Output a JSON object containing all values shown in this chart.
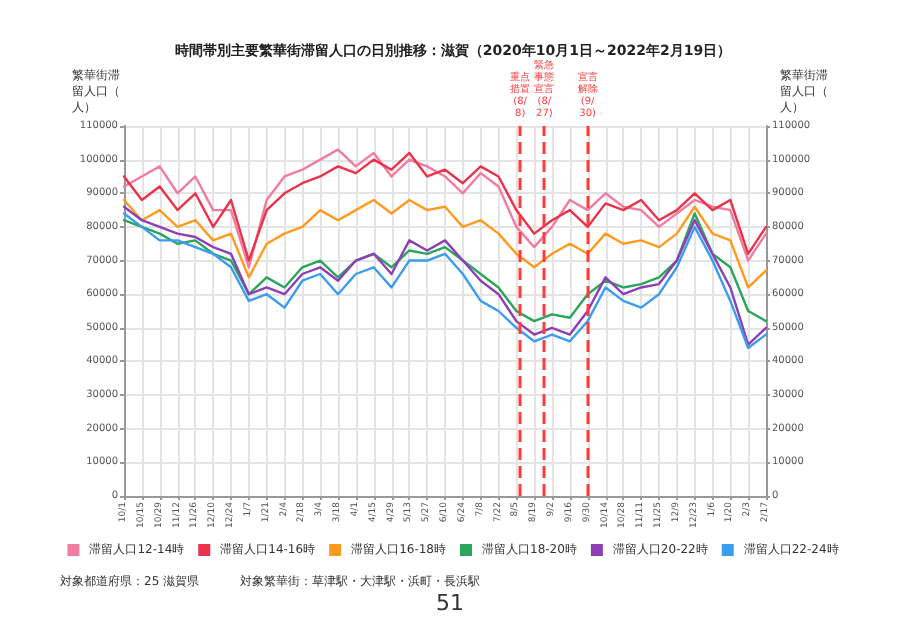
{
  "chart_data": {
    "type": "line",
    "title": "時間帯別主要繁華街滞留人口の日別推移：滋賀（2020年10月1日～2022年2月19日）",
    "ylabel": "繁華街滞留人口（人）",
    "y2label": "繁華街滞留人口（人）",
    "x": [
      "2020-10-01",
      "2020-10-15",
      "2020-10-29",
      "2020-11-12",
      "2020-11-26",
      "2020-12-10",
      "2020-12-24",
      "2021-01-07",
      "2021-01-21",
      "2021-02-04",
      "2021-02-18",
      "2021-03-04",
      "2021-03-18",
      "2021-04-01",
      "2021-04-15",
      "2021-04-29",
      "2021-05-13",
      "2021-05-27",
      "2021-06-10",
      "2021-06-24",
      "2021-07-08",
      "2021-07-22",
      "2021-08-05",
      "2021-08-19",
      "2021-09-02",
      "2021-09-16",
      "2021-09-30",
      "2021-10-14",
      "2021-10-28",
      "2021-11-11",
      "2021-11-25",
      "2021-12-09",
      "2021-12-23",
      "2022-01-06",
      "2022-01-20",
      "2022-02-03",
      "2022-02-17"
    ],
    "series": [
      {
        "name": "滞留人口12-14時",
        "color": "#f27ca0",
        "values": [
          92000,
          95000,
          98000,
          90000,
          95000,
          85000,
          85000,
          68000,
          88000,
          95000,
          97000,
          100000,
          103000,
          98000,
          102000,
          95000,
          100000,
          98000,
          95000,
          90000,
          96000,
          92000,
          80000,
          74000,
          80000,
          88000,
          85000,
          90000,
          86000,
          85000,
          80000,
          84000,
          88000,
          86000,
          85000,
          70000,
          78000
        ]
      },
      {
        "name": "滞留人口14-16時",
        "color": "#e8334a",
        "values": [
          95000,
          88000,
          92000,
          85000,
          90000,
          80000,
          88000,
          70000,
          85000,
          90000,
          93000,
          95000,
          98000,
          96000,
          100000,
          97000,
          102000,
          95000,
          97000,
          93000,
          98000,
          95000,
          85000,
          78000,
          82000,
          85000,
          80000,
          87000,
          85000,
          88000,
          82000,
          85000,
          90000,
          85000,
          88000,
          72000,
          80000
        ]
      },
      {
        "name": "滞留人口16-18時",
        "color": "#ff9a1f",
        "values": [
          88000,
          82000,
          85000,
          80000,
          82000,
          76000,
          78000,
          65000,
          75000,
          78000,
          80000,
          85000,
          82000,
          85000,
          88000,
          84000,
          88000,
          85000,
          86000,
          80000,
          82000,
          78000,
          72000,
          68000,
          72000,
          75000,
          72000,
          78000,
          75000,
          76000,
          74000,
          78000,
          86000,
          78000,
          76000,
          62000,
          67000
        ]
      },
      {
        "name": "滞留人口18-20時",
        "color": "#2aa55a",
        "values": [
          82000,
          80000,
          78000,
          75000,
          76000,
          72000,
          70000,
          60000,
          65000,
          62000,
          68000,
          70000,
          65000,
          70000,
          72000,
          68000,
          73000,
          72000,
          74000,
          70000,
          66000,
          62000,
          55000,
          52000,
          54000,
          53000,
          60000,
          64000,
          62000,
          63000,
          65000,
          70000,
          84000,
          72000,
          68000,
          55000,
          52000
        ]
      },
      {
        "name": "滞留人口20-22時",
        "color": "#8e3fb5",
        "values": [
          86000,
          82000,
          80000,
          78000,
          77000,
          74000,
          72000,
          60000,
          62000,
          60000,
          66000,
          68000,
          64000,
          70000,
          72000,
          66000,
          76000,
          73000,
          76000,
          70000,
          64000,
          60000,
          52000,
          48000,
          50000,
          48000,
          55000,
          65000,
          60000,
          62000,
          63000,
          70000,
          82000,
          72000,
          62000,
          45000,
          50000
        ]
      },
      {
        "name": "滞留人口22-24時",
        "color": "#3b9cf0",
        "values": [
          84000,
          80000,
          76000,
          76000,
          74000,
          72000,
          68000,
          58000,
          60000,
          56000,
          64000,
          66000,
          60000,
          66000,
          68000,
          62000,
          70000,
          70000,
          72000,
          66000,
          58000,
          55000,
          50000,
          46000,
          48000,
          46000,
          52000,
          62000,
          58000,
          56000,
          60000,
          68000,
          80000,
          70000,
          58000,
          44000,
          48000
        ]
      }
    ],
    "xlim": [
      "2020-10-01",
      "2022-02-17"
    ],
    "xticks": [
      {
        "value": "2020-10-01",
        "label": "10/1"
      },
      {
        "value": "2020-10-15",
        "label": "10/15"
      },
      {
        "value": "2020-10-29",
        "label": "10/29"
      },
      {
        "value": "2020-11-12",
        "label": "11/12"
      },
      {
        "value": "2020-11-26",
        "label": "11/26"
      },
      {
        "value": "2020-12-10",
        "label": "12/10"
      },
      {
        "value": "2020-12-24",
        "label": "12/24"
      },
      {
        "value": "2021-01-07",
        "label": "1/7"
      },
      {
        "value": "2021-01-21",
        "label": "1/21"
      },
      {
        "value": "2021-02-04",
        "label": "2/4"
      },
      {
        "value": "2021-02-18",
        "label": "2/18"
      },
      {
        "value": "2021-03-04",
        "label": "3/4"
      },
      {
        "value": "2021-03-18",
        "label": "3/18"
      },
      {
        "value": "2021-04-01",
        "label": "4/1"
      },
      {
        "value": "2021-04-15",
        "label": "4/15"
      },
      {
        "value": "2021-04-29",
        "label": "4/29"
      },
      {
        "value": "2021-05-13",
        "label": "5/13"
      },
      {
        "value": "2021-05-27",
        "label": "5/27"
      },
      {
        "value": "2021-06-10",
        "label": "6/10"
      },
      {
        "value": "2021-06-24",
        "label": "6/24"
      },
      {
        "value": "2021-07-08",
        "label": "7/8"
      },
      {
        "value": "2021-07-22",
        "label": "7/22"
      },
      {
        "value": "2021-08-05",
        "label": "8/5"
      },
      {
        "value": "2021-08-19",
        "label": "8/19"
      },
      {
        "value": "2021-09-02",
        "label": "9/2"
      },
      {
        "value": "2021-09-16",
        "label": "9/16"
      },
      {
        "value": "2021-09-30",
        "label": "9/30"
      },
      {
        "value": "2021-10-14",
        "label": "10/14"
      },
      {
        "value": "2021-10-28",
        "label": "10/28"
      },
      {
        "value": "2021-11-11",
        "label": "11/11"
      },
      {
        "value": "2021-11-25",
        "label": "11/25"
      },
      {
        "value": "2021-12-09",
        "label": "12/9"
      },
      {
        "value": "2021-12-23",
        "label": "12/23"
      },
      {
        "value": "2022-01-06",
        "label": "1/6"
      },
      {
        "value": "2022-01-20",
        "label": "1/20"
      },
      {
        "value": "2022-02-03",
        "label": "2/3"
      },
      {
        "value": "2022-02-17",
        "label": "2/17"
      }
    ],
    "ylim": [
      0,
      110000
    ],
    "yticks": [
      0,
      10000,
      20000,
      30000,
      40000,
      50000,
      60000,
      70000,
      80000,
      90000,
      100000,
      110000
    ],
    "y2lim": [
      0,
      110000
    ],
    "y2ticks": [
      0,
      10000,
      20000,
      30000,
      40000,
      50000,
      60000,
      70000,
      80000,
      90000,
      100000,
      110000
    ],
    "ref_lines": [
      {
        "axis": "x",
        "value": "2021-08-08",
        "label": "重点措置(8/8)",
        "color": "#ff3b3b",
        "line_style": "dashed"
      },
      {
        "axis": "x",
        "value": "2021-08-27",
        "label": "緊急事態宣言(8/27)",
        "color": "#ff3b3b",
        "line_style": "dashed"
      },
      {
        "axis": "x",
        "value": "2021-09-30",
        "label": "宣言解除(9/30)",
        "color": "#ff3b3b",
        "line_style": "dashed"
      }
    ],
    "annotations": [
      "対象都道府県：25 滋賀県",
      "対象繁華街：草津駅・大津駅・浜町・長浜駅",
      "51"
    ],
    "grid": true,
    "legend": "bottom",
    "marker": "none",
    "line_style": "solid"
  }
}
